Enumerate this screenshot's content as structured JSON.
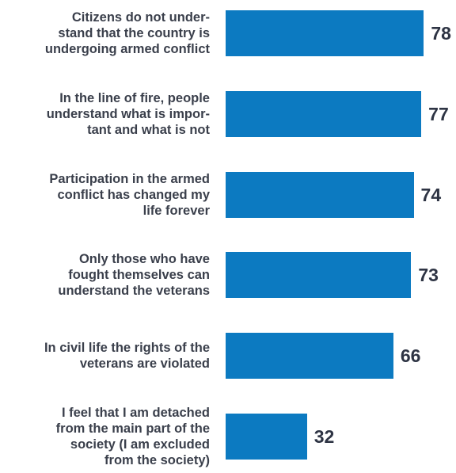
{
  "chart_data": {
    "type": "bar",
    "orientation": "horizontal",
    "categories": [
      "Citizens do not under-\nstand that the country is\nundergoing armed conflict",
      "In the line of fire, people\nunderstand what is impor-\ntant and what is not",
      "Participation in the armed\nconflict has changed my\nlife forever",
      "Only those who have\nfought themselves can\nunderstand the veterans",
      "In civil life the rights of the\nveterans are violated",
      "I feel that I am detached\nfrom the main part of the\nsociety (I am excluded\nfrom the society)"
    ],
    "values": [
      78,
      77,
      74,
      73,
      66,
      32
    ],
    "xlim": [
      0,
      100
    ],
    "bar_color": "#0c7ac1",
    "grid": false,
    "legend": "none",
    "title": "",
    "xlabel": "",
    "ylabel": ""
  }
}
